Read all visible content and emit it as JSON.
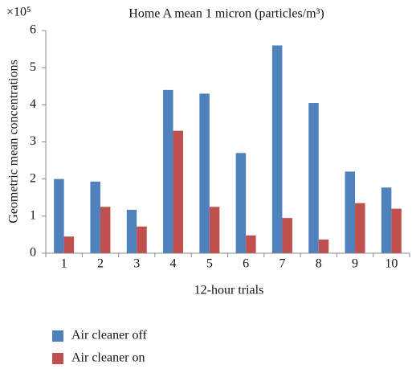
{
  "chart_data": {
    "type": "bar",
    "title": "Home A mean 1 micron (particles/m³)",
    "y_multiplier": "×10⁵",
    "x_label": "12-hour trials",
    "y_label": "Geometric mean concentrations",
    "categories": [
      "1",
      "2",
      "3",
      "4",
      "5",
      "6",
      "7",
      "8",
      "9",
      "10"
    ],
    "series": [
      {
        "name": "Air cleaner off",
        "color": "#4f81bd",
        "values": [
          2.0,
          1.93,
          1.17,
          4.4,
          4.3,
          2.7,
          5.6,
          4.05,
          2.2,
          1.77
        ]
      },
      {
        "name": "Air cleaner on",
        "color": "#c0504d",
        "values": [
          0.45,
          1.25,
          0.72,
          3.3,
          1.25,
          0.48,
          0.95,
          0.37,
          1.35,
          1.2
        ]
      }
    ],
    "ylim": [
      0,
      6
    ],
    "yticks": [
      0,
      1,
      2,
      3,
      4,
      5,
      6
    ],
    "grid": false,
    "legend": "bottom-left"
  }
}
